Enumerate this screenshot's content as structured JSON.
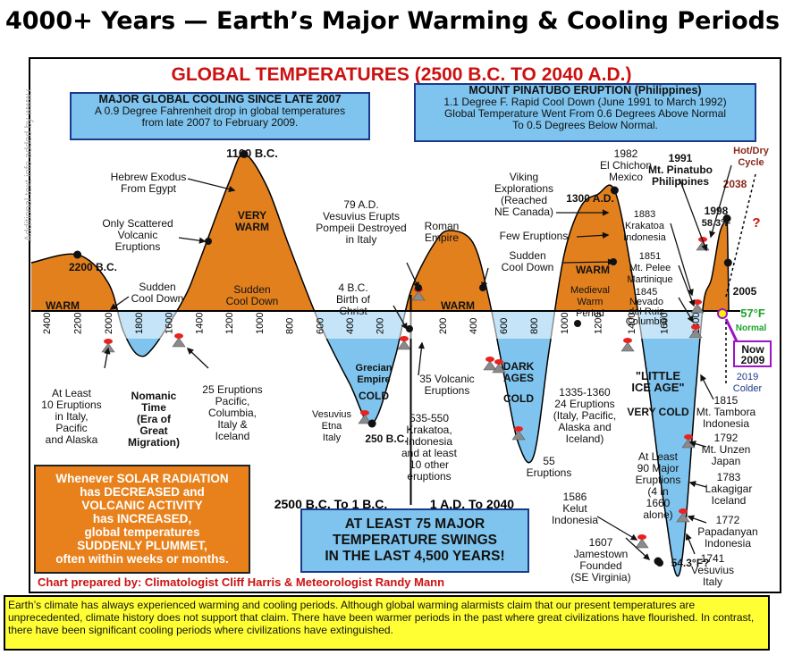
{
  "headline": "4000+ Years — Earth’s Major Warming & Cooling Periods",
  "watermark": "Additional text info added by www.c3headlines.com",
  "box_cooling": {
    "title": "MAJOR GLOBAL COOLING SINCE LATE 2007",
    "line1": "A 0.9 Degree Fahrenheit drop in global temperatures",
    "line2": "from late 2007 to February 2009."
  },
  "box_pinatubo": {
    "title": "MOUNT PINATUBO ERUPTION (Philippines)",
    "line1": "1.1 Degree F. Rapid Cool Down (June 1991 to March 1992)",
    "line2": "Global Temperature Went From 0.6 Degrees Above Normal",
    "line3": "To 0.5 Degrees Below Normal."
  },
  "box_swings": {
    "line1": "AT LEAST 75 MAJOR",
    "line2": "TEMPERATURE SWINGS",
    "line3": "IN THE LAST 4,500 YEARS!"
  },
  "box_solar": {
    "line1": "Whenever SOLAR RADIATION",
    "line2": "has DECREASED and",
    "line3": "VOLCANIC ACTIVITY",
    "line4": "has INCREASED,",
    "line5": "global temperatures",
    "line6": "SUDDENLY PLUMMET,",
    "line7": "often within weeks or months."
  },
  "credit": "Chart prepared by: Climatologist Cliff Harris & Meteorologist Randy Mann",
  "footer_text": "Earth’s climate has always experienced warming and cooling periods. Although global warming alarmists claim that our present temperatures are unprecedented, climate history does not support that claim. There have been warmer periods in the past where great civilizations have flourished. In contrast, there have been significant cooling periods where civilizations have extinguished.",
  "colors": {
    "warm": "#e2801e",
    "cold": "#7ec4ee",
    "title_red": "#cc1111",
    "volcano": "#8a8a8a",
    "lava": "#e8231f",
    "normal_green": "#1aa52a",
    "now_purple": "#9b14c8",
    "box_border": "#1a3a8c"
  },
  "chart_data": {
    "type": "area",
    "title": "GLOBAL TEMPERATURES (2500 B.C. TO 2040 A.D.)",
    "x_tick_labels_bc": [
      "2400",
      "2200",
      "2000",
      "1800",
      "1600",
      "1400",
      "1200",
      "1000",
      "800",
      "600",
      "400",
      "200"
    ],
    "x_tick_labels_ad": [
      "200",
      "400",
      "600",
      "800",
      "1000",
      "1200",
      "1400",
      "1600",
      "1800"
    ],
    "era_labels": [
      "2500 B.C. To 1 B.C.",
      "1 A.D. To 2040"
    ],
    "period_labels": [
      {
        "text": "WARM"
      },
      {
        "text": "Nomanic Time (Era of Great Migration)"
      },
      {
        "text": "VERY WARM"
      },
      {
        "text": "Sudden Cool Down"
      },
      {
        "text": "Grecian Empire"
      },
      {
        "text": "COLD"
      },
      {
        "text": "WARM"
      },
      {
        "text": "DARK AGES"
      },
      {
        "text": "COLD"
      },
      {
        "text": "WARM"
      },
      {
        "text": "Medieval Warm Period"
      },
      {
        "text": "\"LITTLE ICE AGE\""
      },
      {
        "text": "VERY COLD"
      },
      {
        "text": "Normal"
      },
      {
        "text": "Colder"
      }
    ],
    "point_labels": [
      {
        "text": "2200 B.C."
      },
      {
        "text": "1100 B.C."
      },
      {
        "text": "250 B.C."
      },
      {
        "text": "1300 A.D."
      },
      {
        "text": "54.3°F?"
      },
      {
        "text": "1998"
      },
      {
        "text": "58.3°F"
      },
      {
        "text": "2005"
      },
      {
        "text": "57°F"
      },
      {
        "text": "Now"
      },
      {
        "text": "2009"
      },
      {
        "text": "2019"
      },
      {
        "text": "2038"
      },
      {
        "text": "?"
      },
      {
        "text": "Hot/Dry Cycle"
      }
    ],
    "annotations": [
      "Sudden Cool Down",
      "Hebrew Exodus From Egypt",
      "Only Scattered Volcanic Eruptions",
      "At Least 10 Eruptions in Italy, Pacific and Alaska",
      "25 Eruptions Pacific, Columbia, Italy & Iceland",
      "79 A.D. Vesuvius Erupts Pompeii Destroyed in Italy",
      "4 B.C. Birth of Christ",
      "Vesuvius Etna Italy",
      "Roman Empire",
      "35 Volcanic Eruptions",
      "535-550 Krakatoa, Indonesia and at least 10 other eruptions",
      "Viking Explorations (Reached NE Canada)",
      "Few Eruptions",
      "Sudden Cool Down",
      "55 Eruptions",
      "1335-1360 24 Eruptions (Italy, Pacific, Alaska and Iceland)",
      "1982 El Chichon Mexico",
      "1991 Mt. Pinatubo Philippines",
      "1883 Krakatoa Indonesia",
      "1851 Mt. Pelee Martinique",
      "1845 Nevado del Ruiz Columbia",
      "At Least 90 Major Eruptions (4 in 1660 alone)",
      "1815 Mt. Tambora Indonesia",
      "1792 Mt. Unzen Japan",
      "1783 Lakagigar Iceland",
      "1772 Papadanyan Indonesia",
      "1741 Vesuvius Italy",
      "1586 Kelut Indonesia",
      "1607 Jamestown Founded (SE Virginia)"
    ],
    "series": [
      {
        "x": [
          -2500,
          -2200,
          -2000,
          -1900,
          -1800,
          -1700,
          -1500,
          -1400,
          -1200,
          -1100,
          -950,
          -800,
          -600,
          -400,
          -250,
          -100,
          0,
          150,
          250,
          400,
          500,
          600,
          700,
          800,
          900,
          1000,
          1100,
          1200,
          1300,
          1400,
          1500,
          1600,
          1700,
          1800,
          1850,
          1900,
          1950,
          1980,
          1998,
          2005,
          2009
        ],
        "y": [
          1.2,
          1.4,
          0.7,
          -0.5,
          -1.1,
          -0.9,
          0.3,
          1.2,
          3.2,
          3.9,
          3.1,
          1.6,
          -0.3,
          -1.8,
          -2.8,
          -1.2,
          0.5,
          1.7,
          2.0,
          1.7,
          0.4,
          -1.5,
          -3.3,
          -3.6,
          -1.0,
          1.4,
          2.6,
          2.9,
          3.0,
          1.0,
          -1.8,
          -4.8,
          -6.5,
          -2.0,
          0.2,
          0.8,
          1.9,
          2.2,
          2.3,
          1.2,
          0.0
        ]
      }
    ],
    "ylim": [
      -7,
      5
    ]
  }
}
